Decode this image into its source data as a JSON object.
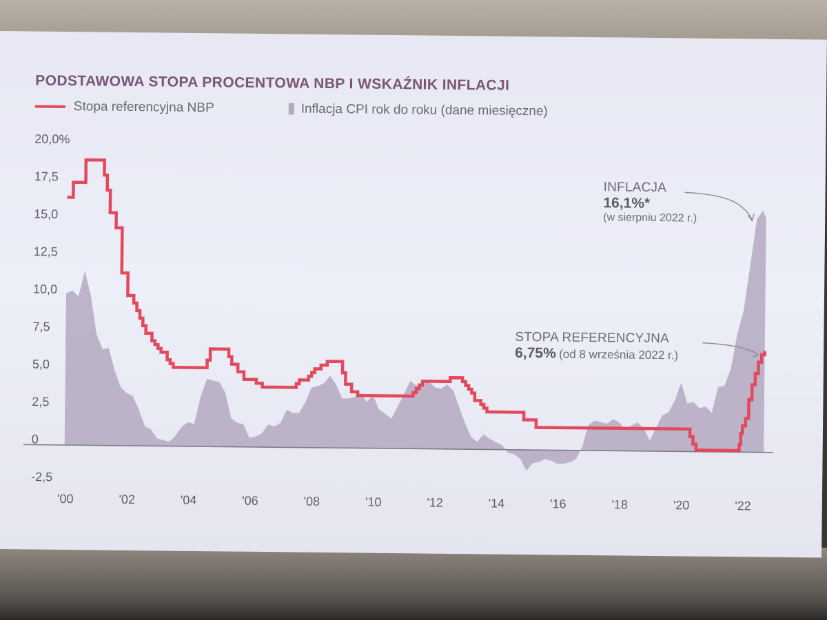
{
  "chart_data": {
    "type": "line",
    "title": "PODSTAWOWA STOPA PROCENTOWA NBP I WSKAŹNIK INFLACJI",
    "legend": [
      {
        "label": "Stopa referencyjna NBP",
        "kind": "line",
        "color": "#e4485d"
      },
      {
        "label": "Inflacja CPI rok do roku (dane miesięczne)",
        "kind": "bar",
        "color": "#b4a9c1"
      }
    ],
    "x_ticks": [
      "'00",
      "'02",
      "'04",
      "'06",
      "'08",
      "'10",
      "'12",
      "'14",
      "'16",
      "'18",
      "'20",
      "'22"
    ],
    "xlim": [
      2000,
      2022.6
    ],
    "y_ticks": [
      "20,0%",
      "17,5",
      "15,0",
      "12,5",
      "10,0",
      "7,5",
      "5,0",
      "2,5",
      "0",
      "-2,5"
    ],
    "ylim": [
      -2.5,
      20
    ],
    "series": [
      {
        "name": "Stopa referencyjna NBP",
        "type": "step-line",
        "color": "#e4485d",
        "points": [
          [
            2000.0,
            16.5
          ],
          [
            2000.2,
            17.5
          ],
          [
            2000.5,
            17.5
          ],
          [
            2000.6,
            19.0
          ],
          [
            2001.0,
            19.0
          ],
          [
            2001.2,
            18.0
          ],
          [
            2001.3,
            17.0
          ],
          [
            2001.4,
            15.5
          ],
          [
            2001.6,
            14.5
          ],
          [
            2001.8,
            11.5
          ],
          [
            2002.0,
            10.0
          ],
          [
            2002.2,
            9.5
          ],
          [
            2002.3,
            9.0
          ],
          [
            2002.4,
            8.5
          ],
          [
            2002.5,
            8.0
          ],
          [
            2002.6,
            7.5
          ],
          [
            2002.8,
            7.0
          ],
          [
            2002.9,
            6.75
          ],
          [
            2003.0,
            6.5
          ],
          [
            2003.1,
            6.25
          ],
          [
            2003.3,
            5.75
          ],
          [
            2003.4,
            5.5
          ],
          [
            2003.5,
            5.25
          ],
          [
            2004.5,
            5.25
          ],
          [
            2004.6,
            5.75
          ],
          [
            2004.7,
            6.5
          ],
          [
            2005.2,
            6.5
          ],
          [
            2005.3,
            6.0
          ],
          [
            2005.4,
            5.5
          ],
          [
            2005.6,
            5.0
          ],
          [
            2005.8,
            4.5
          ],
          [
            2006.2,
            4.25
          ],
          [
            2006.4,
            4.0
          ],
          [
            2007.3,
            4.0
          ],
          [
            2007.5,
            4.25
          ],
          [
            2007.6,
            4.5
          ],
          [
            2007.9,
            4.75
          ],
          [
            2008.0,
            5.0
          ],
          [
            2008.1,
            5.25
          ],
          [
            2008.3,
            5.5
          ],
          [
            2008.5,
            5.75
          ],
          [
            2008.9,
            5.75
          ],
          [
            2009.0,
            5.0
          ],
          [
            2009.1,
            4.25
          ],
          [
            2009.3,
            3.75
          ],
          [
            2009.5,
            3.5
          ],
          [
            2010.0,
            3.5
          ],
          [
            2011.1,
            3.5
          ],
          [
            2011.3,
            3.75
          ],
          [
            2011.4,
            4.0
          ],
          [
            2011.5,
            4.25
          ],
          [
            2011.6,
            4.5
          ],
          [
            2012.4,
            4.5
          ],
          [
            2012.5,
            4.75
          ],
          [
            2012.8,
            4.75
          ],
          [
            2012.9,
            4.5
          ],
          [
            2013.0,
            4.25
          ],
          [
            2013.1,
            4.0
          ],
          [
            2013.2,
            3.75
          ],
          [
            2013.3,
            3.25
          ],
          [
            2013.5,
            3.0
          ],
          [
            2013.6,
            2.75
          ],
          [
            2013.7,
            2.5
          ],
          [
            2014.8,
            2.5
          ],
          [
            2014.9,
            2.0
          ],
          [
            2015.2,
            2.0
          ],
          [
            2015.3,
            1.5
          ],
          [
            2020.2,
            1.5
          ],
          [
            2020.3,
            1.0
          ],
          [
            2020.4,
            0.5
          ],
          [
            2020.5,
            0.1
          ],
          [
            2021.8,
            0.1
          ],
          [
            2021.9,
            0.5
          ],
          [
            2021.95,
            1.25
          ],
          [
            2022.0,
            1.75
          ],
          [
            2022.1,
            2.25
          ],
          [
            2022.2,
            3.5
          ],
          [
            2022.3,
            4.5
          ],
          [
            2022.4,
            5.25
          ],
          [
            2022.5,
            6.0
          ],
          [
            2022.6,
            6.5
          ],
          [
            2022.7,
            6.75
          ]
        ]
      },
      {
        "name": "Inflacja CPI rok do roku (dane miesięczne)",
        "type": "area",
        "color": "#b4a9c1",
        "points": [
          [
            2000.0,
            10.1
          ],
          [
            2000.2,
            10.3
          ],
          [
            2000.4,
            9.9
          ],
          [
            2000.6,
            11.6
          ],
          [
            2000.8,
            10.0
          ],
          [
            2001.0,
            7.4
          ],
          [
            2001.2,
            6.4
          ],
          [
            2001.4,
            6.5
          ],
          [
            2001.6,
            5.0
          ],
          [
            2001.8,
            3.9
          ],
          [
            2002.0,
            3.5
          ],
          [
            2002.2,
            3.3
          ],
          [
            2002.4,
            2.4
          ],
          [
            2002.6,
            1.3
          ],
          [
            2002.8,
            1.1
          ],
          [
            2003.0,
            0.5
          ],
          [
            2003.2,
            0.4
          ],
          [
            2003.4,
            0.3
          ],
          [
            2003.6,
            0.7
          ],
          [
            2003.8,
            1.3
          ],
          [
            2004.0,
            1.6
          ],
          [
            2004.2,
            1.5
          ],
          [
            2004.4,
            3.3
          ],
          [
            2004.6,
            4.5
          ],
          [
            2004.8,
            4.4
          ],
          [
            2005.0,
            4.3
          ],
          [
            2005.2,
            3.6
          ],
          [
            2005.4,
            1.9
          ],
          [
            2005.6,
            1.6
          ],
          [
            2005.8,
            1.5
          ],
          [
            2006.0,
            0.6
          ],
          [
            2006.2,
            0.7
          ],
          [
            2006.4,
            0.9
          ],
          [
            2006.6,
            1.5
          ],
          [
            2006.8,
            1.4
          ],
          [
            2007.0,
            1.6
          ],
          [
            2007.2,
            2.5
          ],
          [
            2007.4,
            2.3
          ],
          [
            2007.6,
            2.3
          ],
          [
            2007.8,
            3.0
          ],
          [
            2008.0,
            4.0
          ],
          [
            2008.2,
            4.1
          ],
          [
            2008.4,
            4.3
          ],
          [
            2008.6,
            4.8
          ],
          [
            2008.8,
            4.2
          ],
          [
            2009.0,
            3.3
          ],
          [
            2009.2,
            3.3
          ],
          [
            2009.4,
            3.4
          ],
          [
            2009.6,
            3.6
          ],
          [
            2009.8,
            3.1
          ],
          [
            2010.0,
            3.5
          ],
          [
            2010.2,
            2.6
          ],
          [
            2010.4,
            2.3
          ],
          [
            2010.6,
            2.0
          ],
          [
            2010.8,
            2.8
          ],
          [
            2011.0,
            3.6
          ],
          [
            2011.2,
            4.5
          ],
          [
            2011.4,
            4.2
          ],
          [
            2011.6,
            4.3
          ],
          [
            2011.8,
            4.5
          ],
          [
            2012.0,
            4.1
          ],
          [
            2012.2,
            4.0
          ],
          [
            2012.4,
            4.3
          ],
          [
            2012.6,
            3.9
          ],
          [
            2012.8,
            2.8
          ],
          [
            2013.0,
            1.7
          ],
          [
            2013.2,
            0.8
          ],
          [
            2013.4,
            0.5
          ],
          [
            2013.6,
            1.0
          ],
          [
            2013.8,
            0.7
          ],
          [
            2014.0,
            0.5
          ],
          [
            2014.2,
            0.3
          ],
          [
            2014.4,
            -0.2
          ],
          [
            2014.6,
            -0.3
          ],
          [
            2014.8,
            -0.6
          ],
          [
            2015.0,
            -1.4
          ],
          [
            2015.2,
            -0.9
          ],
          [
            2015.4,
            -0.8
          ],
          [
            2015.6,
            -0.6
          ],
          [
            2015.8,
            -0.7
          ],
          [
            2016.0,
            -0.9
          ],
          [
            2016.2,
            -0.9
          ],
          [
            2016.4,
            -0.8
          ],
          [
            2016.6,
            -0.6
          ],
          [
            2016.8,
            0.2
          ],
          [
            2017.0,
            1.7
          ],
          [
            2017.2,
            2.0
          ],
          [
            2017.4,
            1.9
          ],
          [
            2017.6,
            1.8
          ],
          [
            2017.8,
            2.1
          ],
          [
            2018.0,
            1.9
          ],
          [
            2018.2,
            1.4
          ],
          [
            2018.4,
            1.7
          ],
          [
            2018.6,
            1.9
          ],
          [
            2018.8,
            1.5
          ],
          [
            2019.0,
            0.7
          ],
          [
            2019.2,
            1.6
          ],
          [
            2019.4,
            2.4
          ],
          [
            2019.6,
            2.6
          ],
          [
            2019.8,
            3.4
          ],
          [
            2020.0,
            4.6
          ],
          [
            2020.2,
            3.2
          ],
          [
            2020.4,
            3.3
          ],
          [
            2020.6,
            2.9
          ],
          [
            2020.8,
            3.0
          ],
          [
            2021.0,
            2.6
          ],
          [
            2021.2,
            4.3
          ],
          [
            2021.4,
            4.4
          ],
          [
            2021.6,
            5.5
          ],
          [
            2021.8,
            7.8
          ],
          [
            2022.0,
            9.4
          ],
          [
            2022.2,
            12.4
          ],
          [
            2022.4,
            15.5
          ],
          [
            2022.6,
            16.1
          ],
          [
            2022.7,
            15.6
          ]
        ]
      }
    ],
    "annotations": [
      {
        "head": "INFLACJA",
        "value": "16,1%*",
        "note": "(w sierpniu 2022 r.)"
      },
      {
        "head": "STOPA REFERENCYJNA",
        "value": "6,75%",
        "note": "(od 8 września 2022 r.)"
      }
    ]
  }
}
